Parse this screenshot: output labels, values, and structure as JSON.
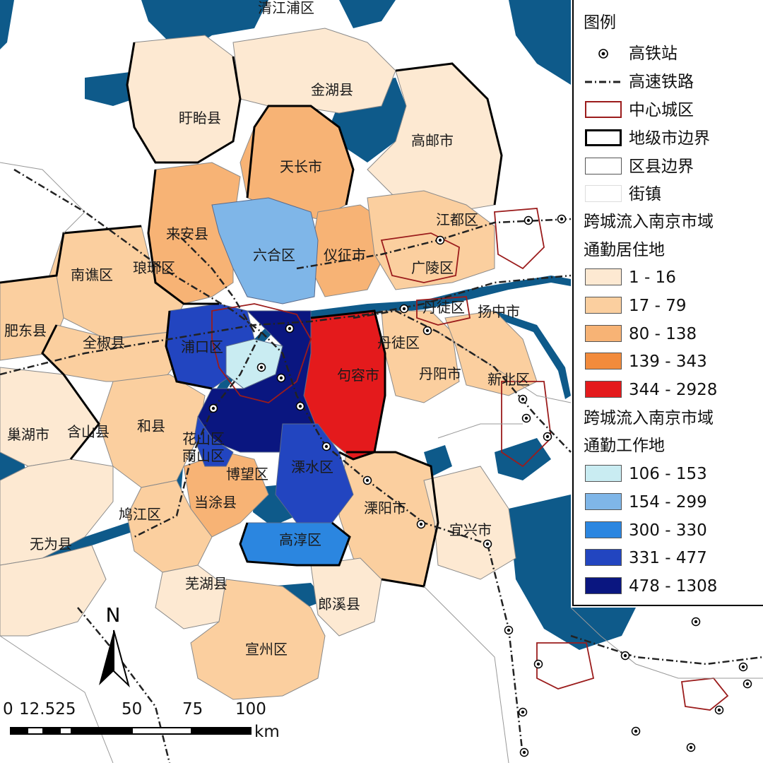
{
  "map": {
    "place_labels": [
      "清江浦区",
      "金湖县",
      "盱眙县",
      "高邮市",
      "天长市",
      "江都区",
      "来安县",
      "六合区",
      "仪征市",
      "南谯区",
      "琅琊区",
      "广陵区",
      "丹徒区",
      "扬中市",
      "肥东县",
      "全椒县",
      "浦口区",
      "丹徒区",
      "句容市",
      "丹阳市",
      "新北区",
      "巢湖市",
      "含山县",
      "和县",
      "花山区",
      "雨山区",
      "溧水区",
      "博望区",
      "当涂县",
      "鸠江区",
      "溧阳市",
      "宜兴市",
      "无为县",
      "高淳区",
      "芜湖县",
      "郎溪县",
      "宣州区"
    ],
    "colors": {
      "residence": [
        "#fde9d2",
        "#fbcf9f",
        "#f7b375",
        "#f28b3c",
        "#e41a1c"
      ],
      "workplace": [
        "#c9ecf2",
        "#7fb6e8",
        "#2b86e0",
        "#2245c0",
        "#0a1680"
      ],
      "water": "#0e5a8a",
      "rail_station": "#000000",
      "city_core_border": "#9b1c1c"
    }
  },
  "legend": {
    "title": "图例",
    "items": [
      {
        "symbol": "station-icon",
        "label": "高铁站"
      },
      {
        "symbol": "railway-line",
        "label": "高速铁路"
      },
      {
        "symbol": "city-core-box",
        "label": "中心城区"
      },
      {
        "symbol": "prefecture-box",
        "label": "地级市边界"
      },
      {
        "symbol": "district-box",
        "label": "区县边界"
      },
      {
        "symbol": "town-box",
        "label": "街镇"
      }
    ],
    "residence_title_line1": "跨城流入南京市域",
    "residence_title_line2": "通勤居住地",
    "residence_classes": [
      "1 - 16",
      "17 - 79",
      "80 - 138",
      "139 - 343",
      "344 - 2928"
    ],
    "workplace_title_line1": "跨城流入南京市域",
    "workplace_title_line2": "通勤工作地",
    "workplace_classes": [
      "106 - 153",
      "154 - 299",
      "300 - 330",
      "331 - 477",
      "478 - 1308"
    ]
  },
  "north_arrow": {
    "label": "N"
  },
  "scale": {
    "ticks": [
      "0",
      "12.525",
      "50",
      "75",
      "100"
    ],
    "unit": "km"
  }
}
